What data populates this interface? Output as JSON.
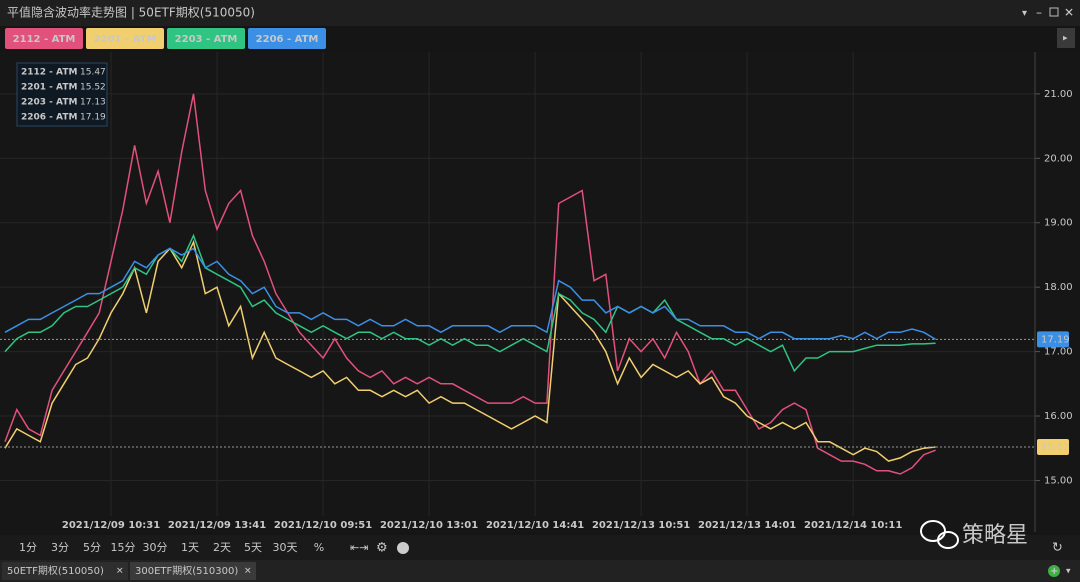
{
  "window": {
    "title": "平值隐含波动率走势图 | 50ETF期权(510050)"
  },
  "chart_data": {
    "type": "line",
    "categories": [
      null,
      null,
      null,
      null,
      null,
      null,
      null,
      null,
      null,
      "2021/12/09 10:31",
      null,
      null,
      null,
      null,
      null,
      null,
      null,
      null,
      "2021/12/09 13:41",
      null,
      null,
      null,
      null,
      null,
      null,
      null,
      null,
      "2021/12/10 09:51",
      null,
      null,
      null,
      null,
      null,
      null,
      null,
      null,
      "2021/12/10 13:01",
      null,
      null,
      null,
      null,
      null,
      null,
      null,
      null,
      "2021/12/10 14:41",
      null,
      null,
      null,
      null,
      null,
      null,
      null,
      null,
      "2021/12/13 10:51",
      null,
      null,
      null,
      null,
      null,
      null,
      null,
      null,
      "2021/12/13 14:01",
      null,
      null,
      null,
      null,
      null,
      null,
      null,
      null,
      "2021/12/14 10:11",
      null,
      null,
      null,
      null,
      null,
      null,
      null,
      null,
      null,
      null,
      null,
      null,
      null,
      null,
      null
    ],
    "series": [
      {
        "name": "2112 - ATM",
        "color": "#e2507c",
        "values": [
          15.6,
          16.1,
          15.8,
          15.7,
          16.4,
          16.7,
          17.0,
          17.3,
          17.6,
          18.4,
          19.2,
          20.2,
          19.3,
          19.8,
          19.0,
          20.1,
          21.0,
          19.5,
          18.9,
          19.3,
          19.5,
          18.8,
          18.4,
          17.9,
          17.6,
          17.3,
          17.1,
          16.9,
          17.2,
          16.9,
          16.7,
          16.6,
          16.7,
          16.5,
          16.6,
          16.5,
          16.6,
          16.5,
          16.5,
          16.4,
          16.3,
          16.2,
          16.2,
          16.2,
          16.3,
          16.2,
          16.2,
          19.3,
          19.4,
          19.5,
          18.1,
          18.2,
          16.7,
          17.2,
          17.0,
          17.2,
          16.9,
          17.3,
          17.0,
          16.5,
          16.7,
          16.4,
          16.4,
          16.1,
          15.8,
          15.9,
          16.1,
          16.2,
          16.1,
          15.5,
          15.4,
          15.3,
          15.3,
          15.25,
          15.15,
          15.15,
          15.1,
          15.2,
          15.4,
          15.47,
          null,
          null,
          null,
          null,
          null,
          null,
          null,
          null
        ]
      },
      {
        "name": "2201 - ATM",
        "color": "#f2cf6e",
        "values": [
          15.5,
          15.8,
          15.7,
          15.6,
          16.2,
          16.5,
          16.8,
          16.9,
          17.2,
          17.6,
          17.9,
          18.3,
          17.6,
          18.4,
          18.6,
          18.3,
          18.7,
          17.9,
          18.0,
          17.4,
          17.7,
          16.9,
          17.3,
          16.9,
          16.8,
          16.7,
          16.6,
          16.7,
          16.5,
          16.6,
          16.4,
          16.4,
          16.3,
          16.4,
          16.3,
          16.4,
          16.2,
          16.3,
          16.2,
          16.2,
          16.1,
          16.0,
          15.9,
          15.8,
          15.9,
          16.0,
          15.9,
          17.9,
          17.7,
          17.5,
          17.3,
          17.0,
          16.5,
          16.9,
          16.6,
          16.8,
          16.7,
          16.6,
          16.7,
          16.5,
          16.6,
          16.3,
          16.2,
          16.0,
          15.9,
          15.8,
          15.9,
          15.8,
          15.9,
          15.6,
          15.6,
          15.5,
          15.4,
          15.5,
          15.45,
          15.3,
          15.35,
          15.45,
          15.5,
          15.52,
          null,
          null,
          null,
          null,
          null,
          null,
          null,
          null
        ]
      },
      {
        "name": "2203 - ATM",
        "color": "#2fc482",
        "values": [
          17.0,
          17.2,
          17.3,
          17.3,
          17.4,
          17.6,
          17.7,
          17.7,
          17.8,
          17.9,
          18.0,
          18.3,
          18.2,
          18.5,
          18.6,
          18.4,
          18.8,
          18.3,
          18.2,
          18.1,
          18.0,
          17.7,
          17.8,
          17.6,
          17.5,
          17.4,
          17.3,
          17.4,
          17.3,
          17.2,
          17.3,
          17.3,
          17.2,
          17.3,
          17.2,
          17.2,
          17.1,
          17.2,
          17.1,
          17.2,
          17.1,
          17.1,
          17.0,
          17.1,
          17.2,
          17.1,
          17.0,
          17.9,
          17.8,
          17.6,
          17.5,
          17.3,
          17.7,
          17.6,
          17.7,
          17.6,
          17.8,
          17.5,
          17.4,
          17.3,
          17.2,
          17.2,
          17.1,
          17.2,
          17.1,
          17.0,
          17.1,
          16.7,
          16.9,
          16.9,
          17.0,
          17.0,
          17.0,
          17.05,
          17.1,
          17.1,
          17.1,
          17.12,
          17.12,
          17.13,
          null,
          null,
          null,
          null,
          null,
          null,
          null,
          null
        ]
      },
      {
        "name": "2206 - ATM",
        "color": "#3b90e6",
        "values": [
          17.3,
          17.4,
          17.5,
          17.5,
          17.6,
          17.7,
          17.8,
          17.9,
          17.9,
          18.0,
          18.1,
          18.4,
          18.3,
          18.5,
          18.6,
          18.5,
          18.6,
          18.3,
          18.4,
          18.2,
          18.1,
          17.9,
          18.0,
          17.7,
          17.6,
          17.6,
          17.5,
          17.6,
          17.5,
          17.5,
          17.4,
          17.5,
          17.4,
          17.4,
          17.5,
          17.4,
          17.4,
          17.3,
          17.4,
          17.4,
          17.4,
          17.4,
          17.3,
          17.4,
          17.4,
          17.4,
          17.3,
          18.1,
          18.0,
          17.8,
          17.8,
          17.6,
          17.7,
          17.6,
          17.7,
          17.6,
          17.7,
          17.5,
          17.5,
          17.4,
          17.4,
          17.4,
          17.3,
          17.3,
          17.2,
          17.3,
          17.3,
          17.2,
          17.2,
          17.2,
          17.2,
          17.25,
          17.2,
          17.3,
          17.2,
          17.3,
          17.3,
          17.35,
          17.3,
          17.19,
          null,
          null,
          null,
          null,
          null,
          null,
          null,
          null
        ]
      }
    ],
    "ylim": [
      14.2,
      21.65
    ],
    "yticks": [
      {
        "value": 15,
        "label": "15.00"
      },
      {
        "value": 16,
        "label": "16.00"
      },
      {
        "value": 17,
        "label": "17.00"
      },
      {
        "value": 18,
        "label": "18.00"
      },
      {
        "value": 19,
        "label": "19.00"
      },
      {
        "value": 20,
        "label": "20.00"
      },
      {
        "value": 21,
        "label": "21.00"
      }
    ],
    "grid": true
  },
  "toolbar": {
    "periods": [
      "1分",
      "3分",
      "5分",
      "15分",
      "30分",
      "1天",
      "2天",
      "5天",
      "30天",
      "%"
    ]
  },
  "bottom_tabs": [
    "50ETF期权(510050)",
    "300ETF期权(510300)"
  ],
  "watermark": "策略星"
}
